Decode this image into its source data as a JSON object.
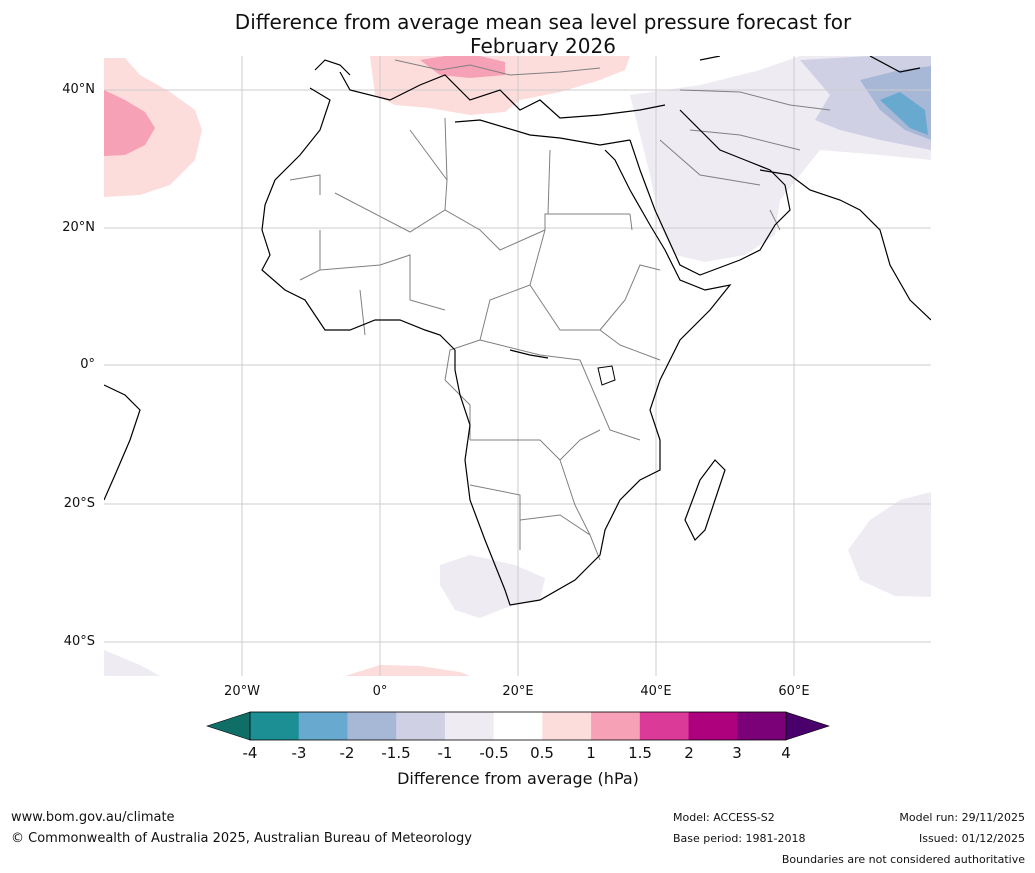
{
  "title": {
    "line1": "Difference from average mean sea level pressure forecast for",
    "line2": "February 2026"
  },
  "map": {
    "region": "Africa",
    "lat_labels": [
      "40°N",
      "20°N",
      "0°",
      "20°S",
      "40°S"
    ],
    "lon_labels": [
      "20°W",
      "0°",
      "20°E",
      "40°E",
      "60°E"
    ],
    "anomaly_areas": [
      {
        "name": "north-atlantic-positive",
        "category": "1 to 1.5"
      },
      {
        "name": "mediterranean-positive",
        "category": "1 to 1.5"
      },
      {
        "name": "central-asia-negative",
        "category": "-2 to -1.5"
      },
      {
        "name": "arabian-peninsula-negative",
        "category": "-1 to -0.5"
      },
      {
        "name": "southern-africa-negative",
        "category": "-1 to -0.5"
      },
      {
        "name": "south-indian-ocean-negative",
        "category": "-1 to -0.5"
      }
    ]
  },
  "colorbar": {
    "ticks": [
      "-4",
      "-3",
      "-2",
      "-1.5",
      "-1",
      "-0.5",
      "0.5",
      "1",
      "1.5",
      "2",
      "3",
      "4"
    ],
    "colors": [
      "#1b8f94",
      "#68a9d0",
      "#a7b7d6",
      "#d0d0e4",
      "#efebf3",
      "#ffffff",
      "#fddcdc",
      "#f7a1b7",
      "#dc3a98",
      "#ae017e",
      "#7a0177"
    ],
    "under_color": "#0f6e66",
    "over_color": "#49006a",
    "label": "Difference from average (hPa)"
  },
  "footer": {
    "website": "www.bom.gov.au/climate",
    "copyright": "© Commonwealth of Australia 2025, Australian Bureau of Meteorology",
    "model": "Model: ACCESS-S2",
    "base_period": "Base period: 1981-2018",
    "model_run": "Model run: 29/11/2025",
    "issued": "Issued: 01/12/2025",
    "disclaimer": "Boundaries are not considered authoritative"
  }
}
